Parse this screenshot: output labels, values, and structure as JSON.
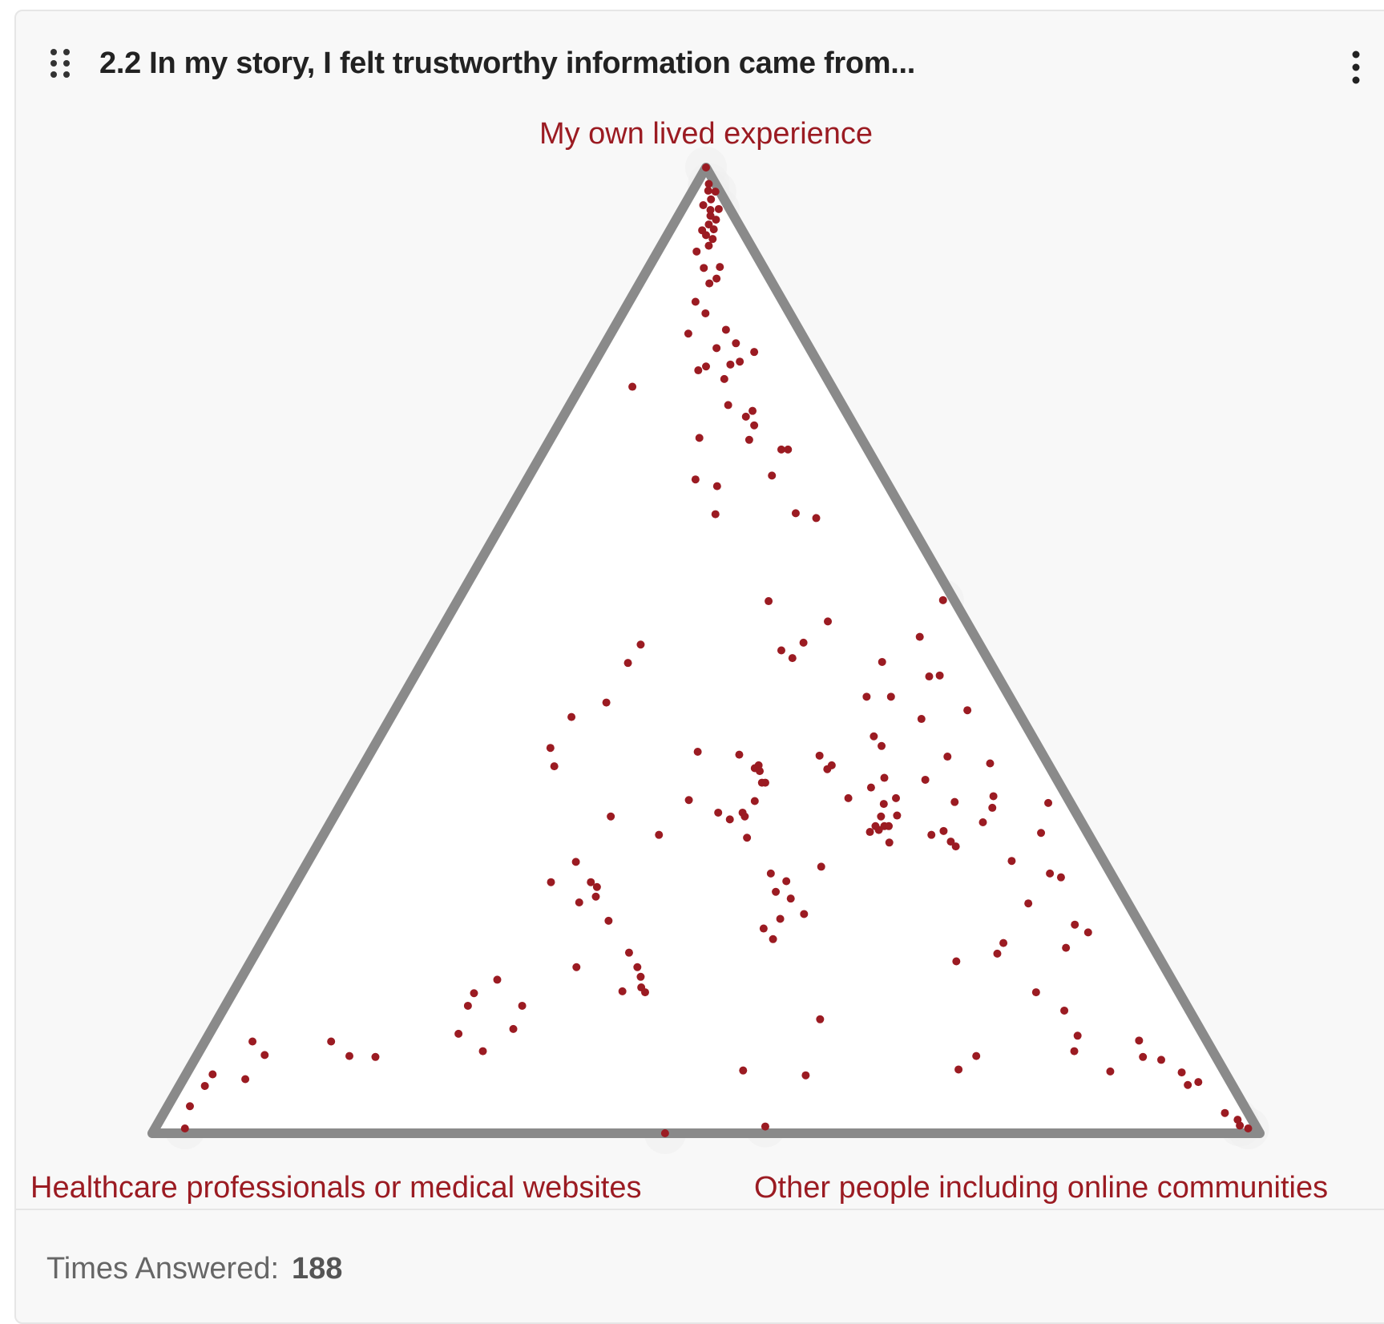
{
  "card": {
    "title": "2.2 In my story, I felt trustworthy information came from...",
    "footer_label": "Times Answered:",
    "footer_value": "188"
  },
  "colors": {
    "accent": "#9b1b22",
    "triangle": "#8a8a8a",
    "halo": "#eeeeee",
    "card_bg": "#f8f8f8"
  },
  "icons": {
    "drag": "drag-handle-icon",
    "menu": "more-vertical-icon"
  },
  "chart_data": {
    "type": "scatter",
    "subtype": "ternary",
    "corners": {
      "top": "My own lived experience",
      "left": "Healthcare professionals or medical websites",
      "right": "Other people including online communities"
    },
    "value_note": "each point: [top, left, right] shares summing to 1",
    "points": [
      [
        1.0,
        0.0,
        0.0
      ],
      [
        0.983,
        0.006,
        0.011
      ],
      [
        0.976,
        0.01,
        0.014
      ],
      [
        0.975,
        0.004,
        0.021
      ],
      [
        0.967,
        0.012,
        0.021
      ],
      [
        0.961,
        0.022,
        0.017
      ],
      [
        0.956,
        0.018,
        0.026
      ],
      [
        0.957,
        0.01,
        0.033
      ],
      [
        0.95,
        0.021,
        0.029
      ],
      [
        0.946,
        0.018,
        0.036
      ],
      [
        0.941,
        0.027,
        0.032
      ],
      [
        0.935,
        0.036,
        0.029
      ],
      [
        0.936,
        0.025,
        0.039
      ],
      [
        0.93,
        0.035,
        0.035
      ],
      [
        0.926,
        0.031,
        0.043
      ],
      [
        0.919,
        0.038,
        0.043
      ],
      [
        0.913,
        0.052,
        0.035
      ],
      [
        0.897,
        0.039,
        0.064
      ],
      [
        0.896,
        0.054,
        0.05
      ],
      [
        0.885,
        0.048,
        0.067
      ],
      [
        0.88,
        0.057,
        0.063
      ],
      [
        0.861,
        0.079,
        0.06
      ],
      [
        0.849,
        0.076,
        0.075
      ],
      [
        0.832,
        0.066,
        0.102
      ],
      [
        0.828,
        0.102,
        0.07
      ],
      [
        0.818,
        0.064,
        0.118
      ],
      [
        0.813,
        0.084,
        0.103
      ],
      [
        0.809,
        0.052,
        0.139
      ],
      [
        0.799,
        0.07,
        0.131
      ],
      [
        0.796,
        0.08,
        0.124
      ],
      [
        0.794,
        0.103,
        0.103
      ],
      [
        0.79,
        0.112,
        0.098
      ],
      [
        0.781,
        0.093,
        0.126
      ],
      [
        0.773,
        0.18,
        0.047
      ],
      [
        0.754,
        0.103,
        0.143
      ],
      [
        0.748,
        0.084,
        0.168
      ],
      [
        0.742,
        0.093,
        0.165
      ],
      [
        0.733,
        0.09,
        0.177
      ],
      [
        0.72,
        0.146,
        0.134
      ],
      [
        0.718,
        0.102,
        0.18
      ],
      [
        0.708,
        0.072,
        0.22
      ],
      [
        0.708,
        0.078,
        0.214
      ],
      [
        0.681,
        0.1,
        0.219
      ],
      [
        0.67,
        0.155,
        0.175
      ],
      [
        0.677,
        0.171,
        0.152
      ],
      [
        0.641,
        0.171,
        0.188
      ],
      [
        0.637,
        0.082,
        0.281
      ],
      [
        0.642,
        0.098,
        0.26
      ],
      [
        0.551,
        0.168,
        0.281
      ],
      [
        0.506,
        0.306,
        0.188
      ],
      [
        0.487,
        0.327,
        0.186
      ],
      [
        0.488,
        0.097,
        0.415
      ],
      [
        0.53,
        0.125,
        0.345
      ],
      [
        0.552,
        0.01,
        0.438
      ],
      [
        0.508,
        0.158,
        0.334
      ],
      [
        0.5,
        0.182,
        0.318
      ],
      [
        0.492,
        0.176,
        0.332
      ],
      [
        0.446,
        0.367,
        0.187
      ],
      [
        0.431,
        0.406,
        0.163
      ],
      [
        0.381,
        0.262,
        0.357
      ],
      [
        0.411,
        0.143,
        0.446
      ],
      [
        0.401,
        0.141,
        0.458
      ],
      [
        0.368,
        0.155,
        0.477
      ],
      [
        0.366,
        0.119,
        0.515
      ],
      [
        0.391,
        0.202,
        0.407
      ],
      [
        0.381,
        0.196,
        0.423
      ],
      [
        0.378,
        0.267,
        0.355
      ],
      [
        0.358,
        0.172,
        0.47
      ],
      [
        0.347,
        0.155,
        0.498
      ],
      [
        0.347,
        0.198,
        0.455
      ],
      [
        0.328,
        0.178,
        0.494
      ],
      [
        0.318,
        0.18,
        0.502
      ],
      [
        0.329,
        0.163,
        0.508
      ],
      [
        0.314,
        0.187,
        0.499
      ],
      [
        0.395,
        0.31,
        0.295
      ],
      [
        0.392,
        0.274,
        0.334
      ],
      [
        0.363,
        0.265,
        0.372
      ],
      [
        0.363,
        0.268,
        0.369
      ],
      [
        0.344,
        0.284,
        0.372
      ],
      [
        0.375,
        0.264,
        0.361
      ],
      [
        0.377,
        0.202,
        0.421
      ],
      [
        0.318,
        0.176,
        0.506
      ],
      [
        0.312,
        0.196,
        0.492
      ],
      [
        0.322,
        0.089,
        0.589
      ],
      [
        0.302,
        0.128,
        0.57
      ],
      [
        0.282,
        0.083,
        0.635
      ],
      [
        0.265,
        0.047,
        0.688
      ],
      [
        0.311,
        0.042,
        0.647
      ],
      [
        0.313,
        0.129,
        0.558
      ],
      [
        0.337,
        0.073,
        0.59
      ],
      [
        0.349,
        0.066,
        0.585
      ],
      [
        0.39,
        0.087,
        0.523
      ],
      [
        0.343,
        0.104,
        0.553
      ],
      [
        0.318,
        0.188,
        0.494
      ],
      [
        0.301,
        0.184,
        0.515
      ],
      [
        0.297,
        0.126,
        0.577
      ],
      [
        0.309,
        0.142,
        0.549
      ],
      [
        0.341,
        0.169,
        0.49
      ],
      [
        0.276,
        0.258,
        0.466
      ],
      [
        0.269,
        0.307,
        0.424
      ],
      [
        0.261,
        0.297,
        0.442
      ],
      [
        0.243,
        0.302,
        0.455
      ],
      [
        0.227,
        0.298,
        0.475
      ],
      [
        0.212,
        0.342,
        0.446
      ],
      [
        0.201,
        0.339,
        0.46
      ],
      [
        0.222,
        0.322,
        0.456
      ],
      [
        0.25,
        0.312,
        0.438
      ],
      [
        0.332,
        0.301,
        0.367
      ],
      [
        0.309,
        0.388,
        0.303
      ],
      [
        0.306,
        0.31,
        0.384
      ],
      [
        0.345,
        0.343,
        0.312
      ],
      [
        0.38,
        0.447,
        0.173
      ],
      [
        0.399,
        0.441,
        0.16
      ],
      [
        0.328,
        0.422,
        0.25
      ],
      [
        0.328,
        0.301,
        0.371
      ],
      [
        0.325,
        0.316,
        0.359
      ],
      [
        0.332,
        0.323,
        0.345
      ],
      [
        0.281,
        0.477,
        0.242
      ],
      [
        0.245,
        0.477,
        0.278
      ],
      [
        0.255,
        0.471,
        0.274
      ],
      [
        0.26,
        0.474,
        0.266
      ],
      [
        0.239,
        0.495,
        0.266
      ],
      [
        0.26,
        0.51,
        0.23
      ],
      [
        0.22,
        0.478,
        0.302
      ],
      [
        0.187,
        0.476,
        0.337
      ],
      [
        0.172,
        0.476,
        0.352
      ],
      [
        0.151,
        0.483,
        0.366
      ],
      [
        0.162,
        0.478,
        0.36
      ],
      [
        0.146,
        0.482,
        0.372
      ],
      [
        0.147,
        0.502,
        0.351
      ],
      [
        0.172,
        0.531,
        0.297
      ],
      [
        0.159,
        0.609,
        0.232
      ],
      [
        0.145,
        0.637,
        0.218
      ],
      [
        0.132,
        0.649,
        0.219
      ],
      [
        0.132,
        0.6,
        0.268
      ],
      [
        0.108,
        0.62,
        0.272
      ],
      [
        0.085,
        0.659,
        0.256
      ],
      [
        0.103,
        0.672,
        0.225
      ],
      [
        0.079,
        0.759,
        0.162
      ],
      [
        0.08,
        0.782,
        0.138
      ],
      [
        0.095,
        0.791,
        0.114
      ],
      [
        0.095,
        0.862,
        0.043
      ],
      [
        0.081,
        0.858,
        0.061
      ],
      [
        0.056,
        0.888,
        0.056
      ],
      [
        0.061,
        0.915,
        0.024
      ],
      [
        0.049,
        0.928,
        0.023
      ],
      [
        0.028,
        0.952,
        0.02
      ],
      [
        0.005,
        0.968,
        0.027
      ],
      [
        0.0,
        0.537,
        0.463
      ],
      [
        0.065,
        0.434,
        0.501
      ],
      [
        0.007,
        0.443,
        0.55
      ],
      [
        0.06,
        0.38,
        0.56
      ],
      [
        0.066,
        0.239,
        0.695
      ],
      [
        0.08,
        0.216,
        0.704
      ],
      [
        0.118,
        0.338,
        0.544
      ],
      [
        0.178,
        0.185,
        0.637
      ],
      [
        0.186,
        0.144,
        0.67
      ],
      [
        0.197,
        0.133,
        0.67
      ],
      [
        0.127,
        0.113,
        0.76
      ],
      [
        0.146,
        0.129,
        0.725
      ],
      [
        0.101,
        0.114,
        0.785
      ],
      [
        0.085,
        0.125,
        0.79
      ],
      [
        0.064,
        0.103,
        0.833
      ],
      [
        0.079,
        0.066,
        0.855
      ],
      [
        0.096,
        0.061,
        0.843
      ],
      [
        0.076,
        0.051,
        0.873
      ],
      [
        0.063,
        0.039,
        0.898
      ],
      [
        0.05,
        0.04,
        0.91
      ],
      [
        0.053,
        0.029,
        0.918
      ],
      [
        0.021,
        0.021,
        0.958
      ],
      [
        0.014,
        0.013,
        0.973
      ],
      [
        0.005,
        0.008,
        0.987
      ],
      [
        0.008,
        0.014,
        0.978
      ],
      [
        0.192,
        0.079,
        0.729
      ],
      [
        0.216,
        0.059,
        0.725
      ],
      [
        0.238,
        0.09,
        0.672
      ],
      [
        0.208,
        0.051,
        0.741
      ],
      [
        0.269,
        0.055,
        0.676
      ],
      [
        0.342,
        0.02,
        0.638
      ],
      [
        0.383,
        0.052,
        0.565
      ],
      [
        0.438,
        0.045,
        0.517
      ],
      [
        0.429,
        0.091,
        0.48
      ],
      [
        0.452,
        0.107,
        0.441
      ],
      [
        0.452,
        0.129,
        0.419
      ],
      [
        0.473,
        0.062,
        0.465
      ],
      [
        0.474,
        0.052,
        0.474
      ],
      [
        0.514,
        0.05,
        0.436
      ]
    ]
  }
}
